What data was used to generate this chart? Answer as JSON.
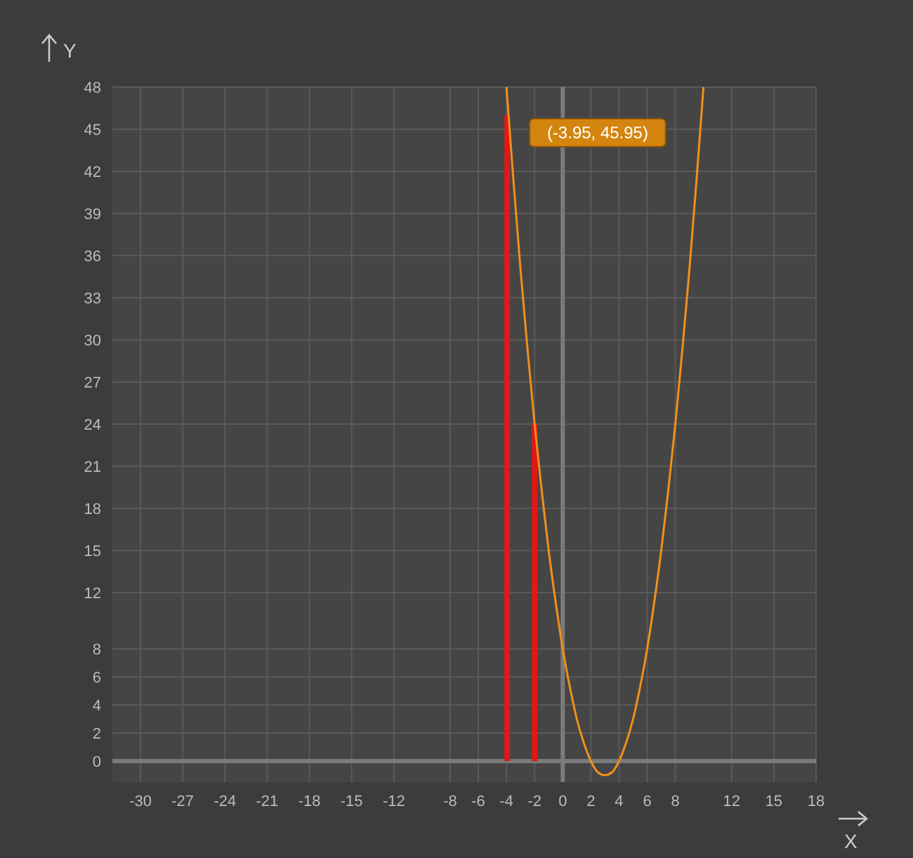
{
  "chart_data": {
    "type": "line",
    "xlabel": "X",
    "ylabel": "Y",
    "xlim": [
      -32,
      18
    ],
    "ylim": [
      -1.5,
      48
    ],
    "xticks": [
      -30,
      -27,
      -24,
      -21,
      -18,
      -15,
      -12,
      -8,
      -6,
      -4,
      -2,
      0,
      2,
      4,
      6,
      8,
      12,
      15,
      18
    ],
    "yticks": [
      0,
      2,
      4,
      6,
      8,
      12,
      15,
      18,
      21,
      24,
      27,
      30,
      33,
      36,
      39,
      42,
      45,
      48
    ],
    "grid": true,
    "series": [
      {
        "type": "bar",
        "color": "#e01818",
        "x": [
          -3.95,
          -2
        ],
        "values": [
          46,
          24
        ]
      },
      {
        "color": "#f0901c",
        "x": [
          -4,
          -3.5,
          -3,
          -2.5,
          -2,
          -1.5,
          -1,
          -0.5,
          0,
          0.5,
          1,
          1.5,
          2,
          2.5,
          3,
          3.5,
          4,
          4.5,
          5,
          5.5,
          6,
          6.5,
          7,
          7.5,
          8,
          8.5,
          9,
          9.5,
          10
        ],
        "values": [
          48,
          41.3,
          35,
          29.3,
          24,
          19.3,
          15,
          11.3,
          8,
          5.3,
          3,
          1.3,
          0,
          -0.8,
          -1,
          -0.8,
          0,
          1.3,
          3,
          5.3,
          8,
          11.3,
          15,
          19.3,
          24,
          29.3,
          35,
          41.3,
          48
        ]
      }
    ],
    "annotations": [
      {
        "text": "(-3.95, 45.95)",
        "x": -3.95,
        "y": 45.95
      }
    ]
  }
}
